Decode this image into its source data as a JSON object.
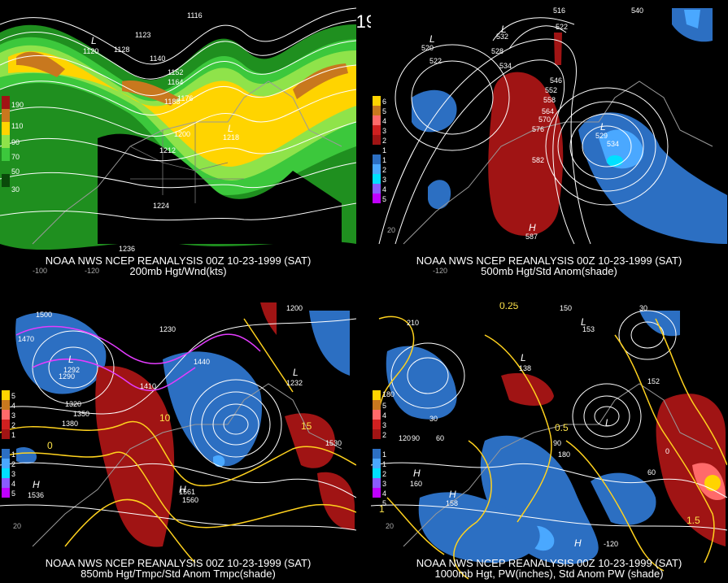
{
  "title": "00Z 10-23-1999 (SAT)",
  "panels": {
    "tl": {
      "caption1": "NOAA NWS NCEP REANALYSIS 00Z 10-23-1999 (SAT)",
      "caption2": "200mb Hgt/Wnd(kts)",
      "legend": [
        "190",
        "110",
        "90",
        "70",
        "50",
        "30"
      ],
      "contours": [
        "1116",
        "1120",
        "1128",
        "1140",
        "1152",
        "1164",
        "1176",
        "1188",
        "1200",
        "1212",
        "1218",
        "1224",
        "1236",
        "1123"
      ],
      "grid": [
        "-100",
        "-120"
      ]
    },
    "tr": {
      "caption1": "NOAA NWS NCEP REANALYSIS 00Z 10-23-1999 (SAT)",
      "caption2": "500mb Hgt/Std Anom(shade)",
      "legend": [
        "6",
        "5",
        "4",
        "3",
        "2",
        "1",
        "1",
        "2",
        "3",
        "4",
        "5"
      ],
      "contours": [
        "516",
        "522",
        "528",
        "534",
        "540",
        "546",
        "552",
        "558",
        "564",
        "570",
        "576",
        "582",
        "520",
        "529",
        "587",
        "522",
        "534",
        "532"
      ],
      "grid": [
        "20",
        "-120"
      ]
    },
    "bl": {
      "caption1": "NOAA NWS NCEP REANALYSIS 00Z 10-23-1999 (SAT)",
      "caption2": "850mb Hgt/Tmpc/Std Anom Tmpc(shade)",
      "legend": [
        "5",
        "4",
        "3",
        "2",
        "1",
        "1",
        "2",
        "3",
        "4",
        "5"
      ],
      "contours": [
        "1500",
        "1470",
        "1440",
        "1410",
        "1380",
        "1350",
        "1320",
        "1290",
        "1530",
        "1560",
        "1200",
        "1230",
        "1292",
        "1232",
        "1536",
        "1561",
        "15",
        "10",
        "0"
      ],
      "grid": [
        "20"
      ]
    },
    "br": {
      "caption1": "NOAA NWS NCEP REANALYSIS 00Z 10-23-1999 (SAT)",
      "caption2": "1000mb Hgt, PW(inches), Std Anom PW (shade)",
      "legend": [
        "180",
        "5",
        "4",
        "3",
        "2",
        "1",
        "1",
        "2",
        "3",
        "4",
        "5"
      ],
      "contours": [
        "0.25",
        "0.5",
        "1",
        "1.5",
        "30",
        "60",
        "90",
        "120",
        "150",
        "180",
        "210",
        "30",
        "60",
        "160",
        "158",
        "152",
        "153",
        "138",
        "90",
        "-120",
        "0",
        "20"
      ],
      "grid": [
        "20"
      ]
    }
  },
  "colors": {
    "wind_dark_green": "#1f8f1f",
    "wind_green": "#3cc83c",
    "wind_light_green": "#8fe34a",
    "wind_yellow": "#ffd400",
    "wind_orange": "#c8781e",
    "anom_red": "#a01414",
    "anom_blue": "#2c6fc2",
    "anom_lightblue": "#4aa8ff",
    "anom_cyan": "#00e0ff",
    "contour_yellow": "#ffd21e",
    "contour_magenta": "#e43cff"
  }
}
